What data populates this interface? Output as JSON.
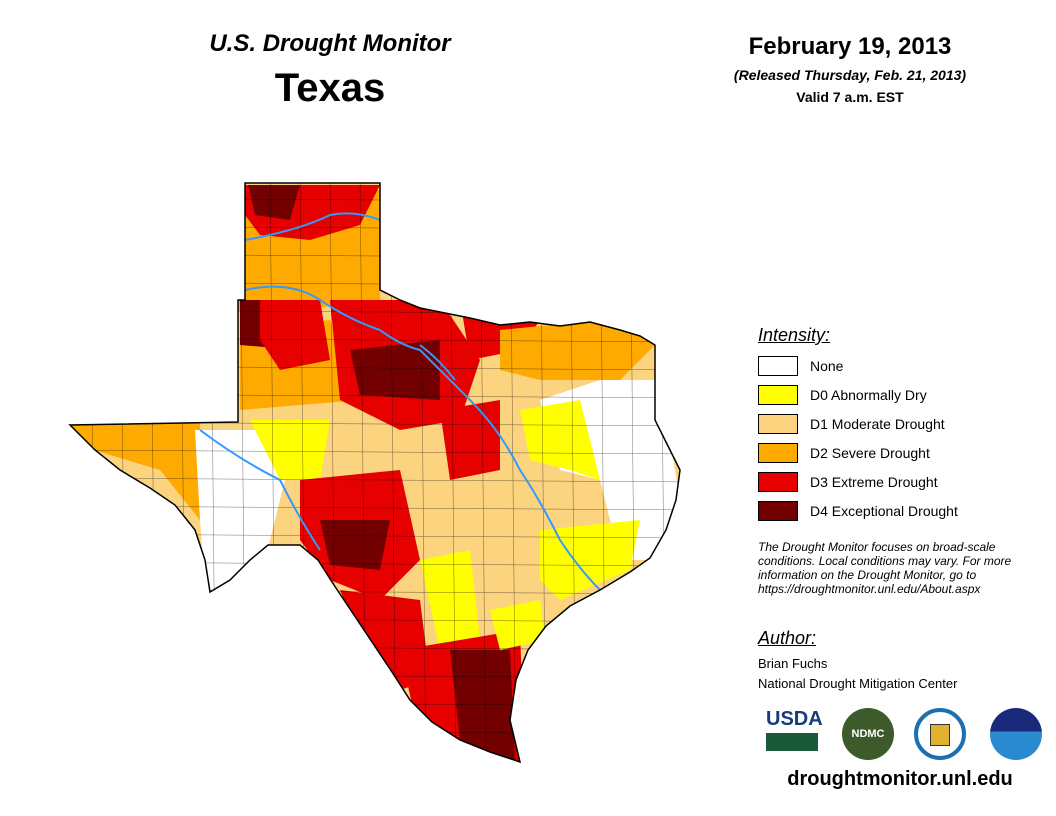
{
  "header": {
    "title": "U.S. Drought Monitor",
    "region": "Texas",
    "date": "February 19, 2013",
    "released": "(Released Thursday, Feb. 21, 2013)",
    "valid": "Valid 7 a.m. EST"
  },
  "legend": {
    "title": "Intensity:",
    "items": [
      {
        "label": "None",
        "color": "#FFFFFF"
      },
      {
        "label": "D0 Abnormally Dry",
        "color": "#FFFF00"
      },
      {
        "label": "D1 Moderate Drought",
        "color": "#FCD37F"
      },
      {
        "label": "D2 Severe Drought",
        "color": "#FFAA00"
      },
      {
        "label": "D3 Extreme Drought",
        "color": "#E60000"
      },
      {
        "label": "D4 Exceptional Drought",
        "color": "#730000"
      }
    ]
  },
  "note": "The Drought Monitor focuses on broad-scale conditions. Local conditions may vary. For more information on the Drought Monitor, go to https://droughtmonitor.unl.edu/About.aspx",
  "author": {
    "title": "Author:",
    "name": "Brian Fuchs",
    "org": "National Drought Mitigation Center"
  },
  "logos": {
    "usda": "USDA",
    "ndmc": "NDMC",
    "doc": "Department of Commerce",
    "noaa": "NOAA"
  },
  "footer": {
    "url": "droughtmonitor.unl.edu"
  },
  "colors": {
    "river": "#3399FF",
    "border": "#000000"
  }
}
